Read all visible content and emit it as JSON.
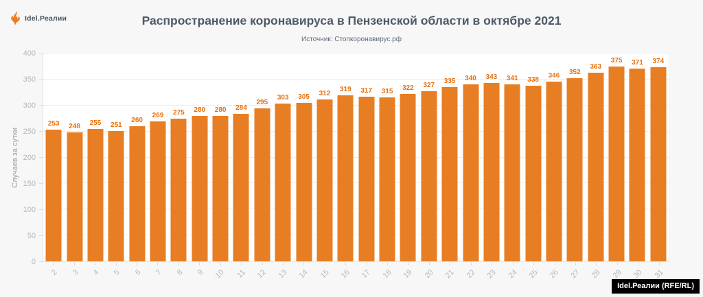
{
  "logo": {
    "text": "Idel.Реалии",
    "icon": "torch-icon",
    "icon_color": "#e87e23"
  },
  "header": {
    "title": "Распространение коронавируса в Пензенской области в октябре 2021",
    "subtitle": "Источник: Стопкоронавирус.рф"
  },
  "watermark": {
    "text": "Idel.Реалии (RFE/RL)",
    "bg": "#000000",
    "color": "#ffffff"
  },
  "colors": {
    "bar": "#e87e23",
    "value_label": "#e8700e",
    "title": "#4d5a66",
    "tick_label": "#b4b8bc",
    "gridline": "#ededee",
    "page_background": "#f7f7f8",
    "plot_background": "#ffffff"
  },
  "chart_data": {
    "type": "bar",
    "title": "Распространение коронавируса в Пензенской области в октябре 2021",
    "subtitle": "Источник: Стопкоронавирус.рф",
    "xlabel": "",
    "ylabel": "Случаев за сутки",
    "ylim": [
      0,
      400
    ],
    "yticks": [
      0,
      50,
      100,
      150,
      200,
      250,
      300,
      350,
      400
    ],
    "grid": true,
    "legend": "none",
    "categories": [
      "2",
      "3",
      "4",
      "5",
      "6",
      "7",
      "8",
      "9",
      "10",
      "11",
      "12",
      "13",
      "14",
      "15",
      "16",
      "17",
      "18",
      "19",
      "20",
      "21",
      "22",
      "23",
      "24",
      "25",
      "26",
      "27",
      "28",
      "29",
      "30",
      "31"
    ],
    "values": [
      253,
      248,
      255,
      251,
      260,
      269,
      275,
      280,
      280,
      284,
      295,
      303,
      305,
      312,
      319,
      317,
      315,
      322,
      327,
      335,
      340,
      343,
      341,
      338,
      346,
      352,
      363,
      375,
      371,
      374
    ]
  }
}
